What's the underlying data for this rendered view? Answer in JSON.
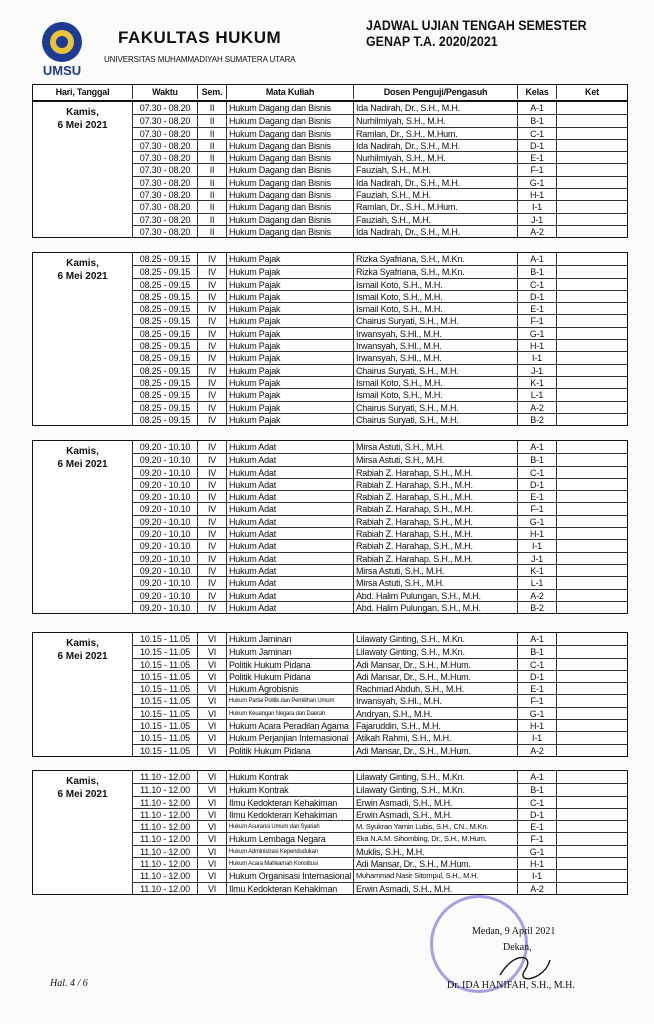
{
  "header": {
    "logo_text": "UMSU",
    "faculty": "FAKULTAS HUKUM",
    "university": "UNIVERSITAS MUHAMMADIYAH SUMATERA UTARA",
    "title_line1": "JADWAL UJIAN TENGAH SEMESTER",
    "title_line2": "GENAP T.A. 2020/2021"
  },
  "columns": [
    "Hari, Tanggal",
    "Waktu",
    "Sem.",
    "Mata Kuliah",
    "Dosen Penguji/Pengasuh",
    "Kelas",
    "Ket"
  ],
  "blocks": [
    {
      "day": "Kamis,",
      "date": "6 Mei 2021",
      "rows": [
        [
          "07.30 - 08.20",
          "II",
          "Hukum Dagang dan Bisnis",
          "Ida Nadirah, Dr., S.H., M.H.",
          "A-1"
        ],
        [
          "07.30 - 08.20",
          "II",
          "Hukum Dagang dan Bisnis",
          "Nurhilmiyah, S.H., M.H.",
          "B-1"
        ],
        [
          "07.30 - 08.20",
          "II",
          "Hukum Dagang dan Bisnis",
          "Ramlan, Dr., S.H., M.Hum.",
          "C-1"
        ],
        [
          "07.30 - 08.20",
          "II",
          "Hukum Dagang dan Bisnis",
          "Ida Nadirah, Dr., S.H., M.H.",
          "D-1"
        ],
        [
          "07.30 - 08.20",
          "II",
          "Hukum Dagang dan Bisnis",
          "Nurhilmiyah, S.H., M.H.",
          "E-1"
        ],
        [
          "07.30 - 08.20",
          "II",
          "Hukum Dagang dan Bisnis",
          "Fauziah, S.H., M.H.",
          "F-1"
        ],
        [
          "07.30 - 08.20",
          "II",
          "Hukum Dagang dan Bisnis",
          "Ida Nadirah, Dr., S.H., M.H.",
          "G-1"
        ],
        [
          "07.30 - 08.20",
          "II",
          "Hukum Dagang dan Bisnis",
          "Fauziah, S.H., M.H.",
          "H-1"
        ],
        [
          "07.30 - 08.20",
          "II",
          "Hukum Dagang dan Bisnis",
          "Ramlan, Dr., S.H., M.Hum.",
          "I-1"
        ],
        [
          "07.30 - 08.20",
          "II",
          "Hukum Dagang dan Bisnis",
          "Fauziah, S.H., M.H.",
          "J-1"
        ],
        [
          "07.30 - 08.20",
          "II",
          "Hukum Dagang dan Bisnis",
          "Ida Nadirah, Dr., S.H., M.H.",
          "A-2"
        ]
      ]
    },
    {
      "day": "Kamis,",
      "date": "6 Mei 2021",
      "rows": [
        [
          "08.25 - 09.15",
          "IV",
          "Hukum Pajak",
          "Rizka Syafriana, S.H., M.Kn.",
          "A-1"
        ],
        [
          "08.25 - 09.15",
          "IV",
          "Hukum Pajak",
          "Rizka Syafriana, S.H., M.Kn.",
          "B-1"
        ],
        [
          "08.25 - 09.15",
          "IV",
          "Hukum Pajak",
          "Ismail Koto, S.H., M.H.",
          "C-1"
        ],
        [
          "08.25 - 09.15",
          "IV",
          "Hukum Pajak",
          "Ismail Koto, S.H., M.H.",
          "D-1"
        ],
        [
          "08.25 - 09.15",
          "IV",
          "Hukum Pajak",
          "Ismail Koto, S.H., M.H.",
          "E-1"
        ],
        [
          "08.25 - 09.15",
          "IV",
          "Hukum Pajak",
          "Chairus Suryati, S.H., M.H.",
          "F-1"
        ],
        [
          "08.25 - 09.15",
          "IV",
          "Hukum Pajak",
          "Irwansyah, S.HI., M.H.",
          "G-1"
        ],
        [
          "08.25 - 09.15",
          "IV",
          "Hukum Pajak",
          "Irwansyah, S.HI., M.H.",
          "H-1"
        ],
        [
          "08.25 - 09.15",
          "IV",
          "Hukum Pajak",
          "Irwansyah, S.HI., M.H.",
          "I-1"
        ],
        [
          "08.25 - 09.15",
          "IV",
          "Hukum Pajak",
          "Chairus Suryati, S.H., M.H.",
          "J-1"
        ],
        [
          "08.25 - 09.15",
          "IV",
          "Hukum Pajak",
          "Ismail Koto, S.H., M.H.",
          "K-1"
        ],
        [
          "08.25 - 09.15",
          "IV",
          "Hukum Pajak",
          "Ismail Koto, S.H., M.H.",
          "L-1"
        ],
        [
          "08.25 - 09.15",
          "IV",
          "Hukum Pajak",
          "Chairus Suryati, S.H., M.H.",
          "A-2"
        ],
        [
          "08.25 - 09.15",
          "IV",
          "Hukum Pajak",
          "Chairus Suryati, S.H., M.H.",
          "B-2"
        ]
      ]
    },
    {
      "day": "Kamis,",
      "date": "6 Mei 2021",
      "rows": [
        [
          "09.20 - 10.10",
          "IV",
          "Hukum Adat",
          "Mirsa Astuti, S.H., M.H.",
          "A-1"
        ],
        [
          "09.20 - 10.10",
          "IV",
          "Hukum Adat",
          "Mirsa Astuti, S.H., M.H.",
          "B-1"
        ],
        [
          "09.20 - 10.10",
          "IV",
          "Hukum Adat",
          "Rabiah Z. Harahap, S.H., M.H.",
          "C-1"
        ],
        [
          "09.20 - 10.10",
          "IV",
          "Hukum Adat",
          "Rabiah Z. Harahap, S.H., M.H.",
          "D-1"
        ],
        [
          "09.20 - 10.10",
          "IV",
          "Hukum Adat",
          "Rabiah Z. Harahap, S.H., M.H.",
          "E-1"
        ],
        [
          "09.20 - 10.10",
          "IV",
          "Hukum Adat",
          "Rabiah Z. Harahap, S.H., M.H.",
          "F-1"
        ],
        [
          "09.20 - 10.10",
          "IV",
          "Hukum Adat",
          "Rabiah Z. Harahap, S.H., M.H.",
          "G-1"
        ],
        [
          "09.20 - 10.10",
          "IV",
          "Hukum Adat",
          "Rabiah Z. Harahap, S.H., M.H.",
          "H-1"
        ],
        [
          "09.20 - 10.10",
          "IV",
          "Hukum Adat",
          "Rabiah Z. Harahap, S.H., M.H.",
          "I-1"
        ],
        [
          "09.20 - 10.10",
          "IV",
          "Hukum Adat",
          "Rabiah Z. Harahap, S.H., M.H.",
          "J-1"
        ],
        [
          "09.20 - 10.10",
          "IV",
          "Hukum Adat",
          "Mirsa Astuti, S.H., M.H.",
          "K-1"
        ],
        [
          "09.20 - 10.10",
          "IV",
          "Hukum Adat",
          "Mirsa Astuti, S.H., M.H.",
          "L-1"
        ],
        [
          "09.20 - 10.10",
          "IV",
          "Hukum Adat",
          "Abd. Halim Pulungan, S.H., M.H.",
          "A-2"
        ],
        [
          "09.20 - 10.10",
          "IV",
          "Hukum Adat",
          "Abd. Halim Pulungan, S.H., M.H.",
          "B-2"
        ]
      ]
    },
    {
      "day": "Kamis,",
      "date": "6 Mei 2021",
      "rows": [
        [
          "10.15 - 11.05",
          "VI",
          "Hukum Jaminan",
          "Lilawaty Ginting, S.H., M.Kn.",
          "A-1"
        ],
        [
          "10.15 - 11.05",
          "VI",
          "Hukum Jaminan",
          "Lilawaty Ginting, S.H., M.Kn.",
          "B-1"
        ],
        [
          "10.15 - 11.05",
          "VI",
          "Politik Hukum Pidana",
          "Adi Mansar, Dr., S.H., M.Hum.",
          "C-1"
        ],
        [
          "10.15 - 11.05",
          "VI",
          "Politik Hukum Pidana",
          "Adi Mansar, Dr., S.H., M.Hum.",
          "D-1"
        ],
        [
          "10.15 - 11.05",
          "VI",
          "Hukum Agrobisnis",
          "Rachmad Abduh, S.H., M.H.",
          "E-1"
        ],
        [
          "10.15 - 11.05",
          "VI",
          "Hukum Partai Politik dan Pemilihan Umum",
          "Irwansyah, S.HI., M.H.",
          "F-1"
        ],
        [
          "10.15 - 11.05",
          "VI",
          "Hukum Keuangan Negara dan Daerah",
          "Andryan, S.H., M.H.",
          "G-1"
        ],
        [
          "10.15 - 11.05",
          "VI",
          "Hukum Acara Peradilan Agama",
          "Fajaruddin, S.H., M.H.",
          "H-1"
        ],
        [
          "10.15 - 11.05",
          "VI",
          "Hukum Perjanjian Internasional",
          "Atikah Rahmi, S.H., M.H.",
          "I-1"
        ],
        [
          "10.15 - 11.05",
          "VI",
          "Politik Hukum Pidana",
          "Adi Mansar, Dr., S.H., M.Hum.",
          "A-2"
        ]
      ]
    },
    {
      "day": "Kamis,",
      "date": "6 Mei 2021",
      "rows": [
        [
          "11.10 - 12.00",
          "VI",
          "Hukum Kontrak",
          "Lilawaty Ginting, S.H., M.Kn.",
          "A-1"
        ],
        [
          "11.10 - 12.00",
          "VI",
          "Hukum Kontrak",
          "Lilawaty Ginting, S.H., M.Kn.",
          "B-1"
        ],
        [
          "11.10 - 12.00",
          "VI",
          "Ilmu Kedokteran Kehakiman",
          "Erwin Asmadi, S.H., M.H.",
          "C-1"
        ],
        [
          "11.10 - 12.00",
          "VI",
          "Ilmu Kedokteran Kehakiman",
          "Erwin Asmadi, S.H., M.H.",
          "D-1"
        ],
        [
          "11.10 - 12.00",
          "VI",
          "Hukum Asuransi Umum dan Syariah",
          "M. Syukran Yamin Lubis, S.H., CN., M.Kn.",
          "E-1"
        ],
        [
          "11.10 - 12.00",
          "VI",
          "Hukum Lembaga Negara",
          "Eka N.A.M. Sihombing, Dr., S.H., M.Hum.",
          "F-1"
        ],
        [
          "11.10 - 12.00",
          "VI",
          "Hukum Administrasi Kependudukan",
          "Muklis, S.H., M.H.",
          "G-1"
        ],
        [
          "11.10 - 12.00",
          "VI",
          "Hukum Acara Mahkamah Konstitusi",
          "Adi Mansar, Dr., S.H., M.Hum.",
          "H-1"
        ],
        [
          "11.10 - 12.00",
          "VI",
          "Hukum Organisasi Internasional",
          "Muhammad Nasir Sitompul, S.H., M.H.",
          "I-1"
        ],
        [
          "11.10 - 12.00",
          "VI",
          "Ilmu Kedokteran Kehakiman",
          "Erwin Asmadi, S.H., M.H.",
          "A-2"
        ]
      ]
    }
  ],
  "footer": {
    "page": "Hal. 4 / 6",
    "place_date": "Medan, 9 April 2021",
    "role": "Dekan,",
    "signatory": "Dr. IDA HANIFAH, S.H., M.H."
  },
  "colors": {
    "stamp": "#7a5bd6",
    "logo": "#1f3a93"
  }
}
